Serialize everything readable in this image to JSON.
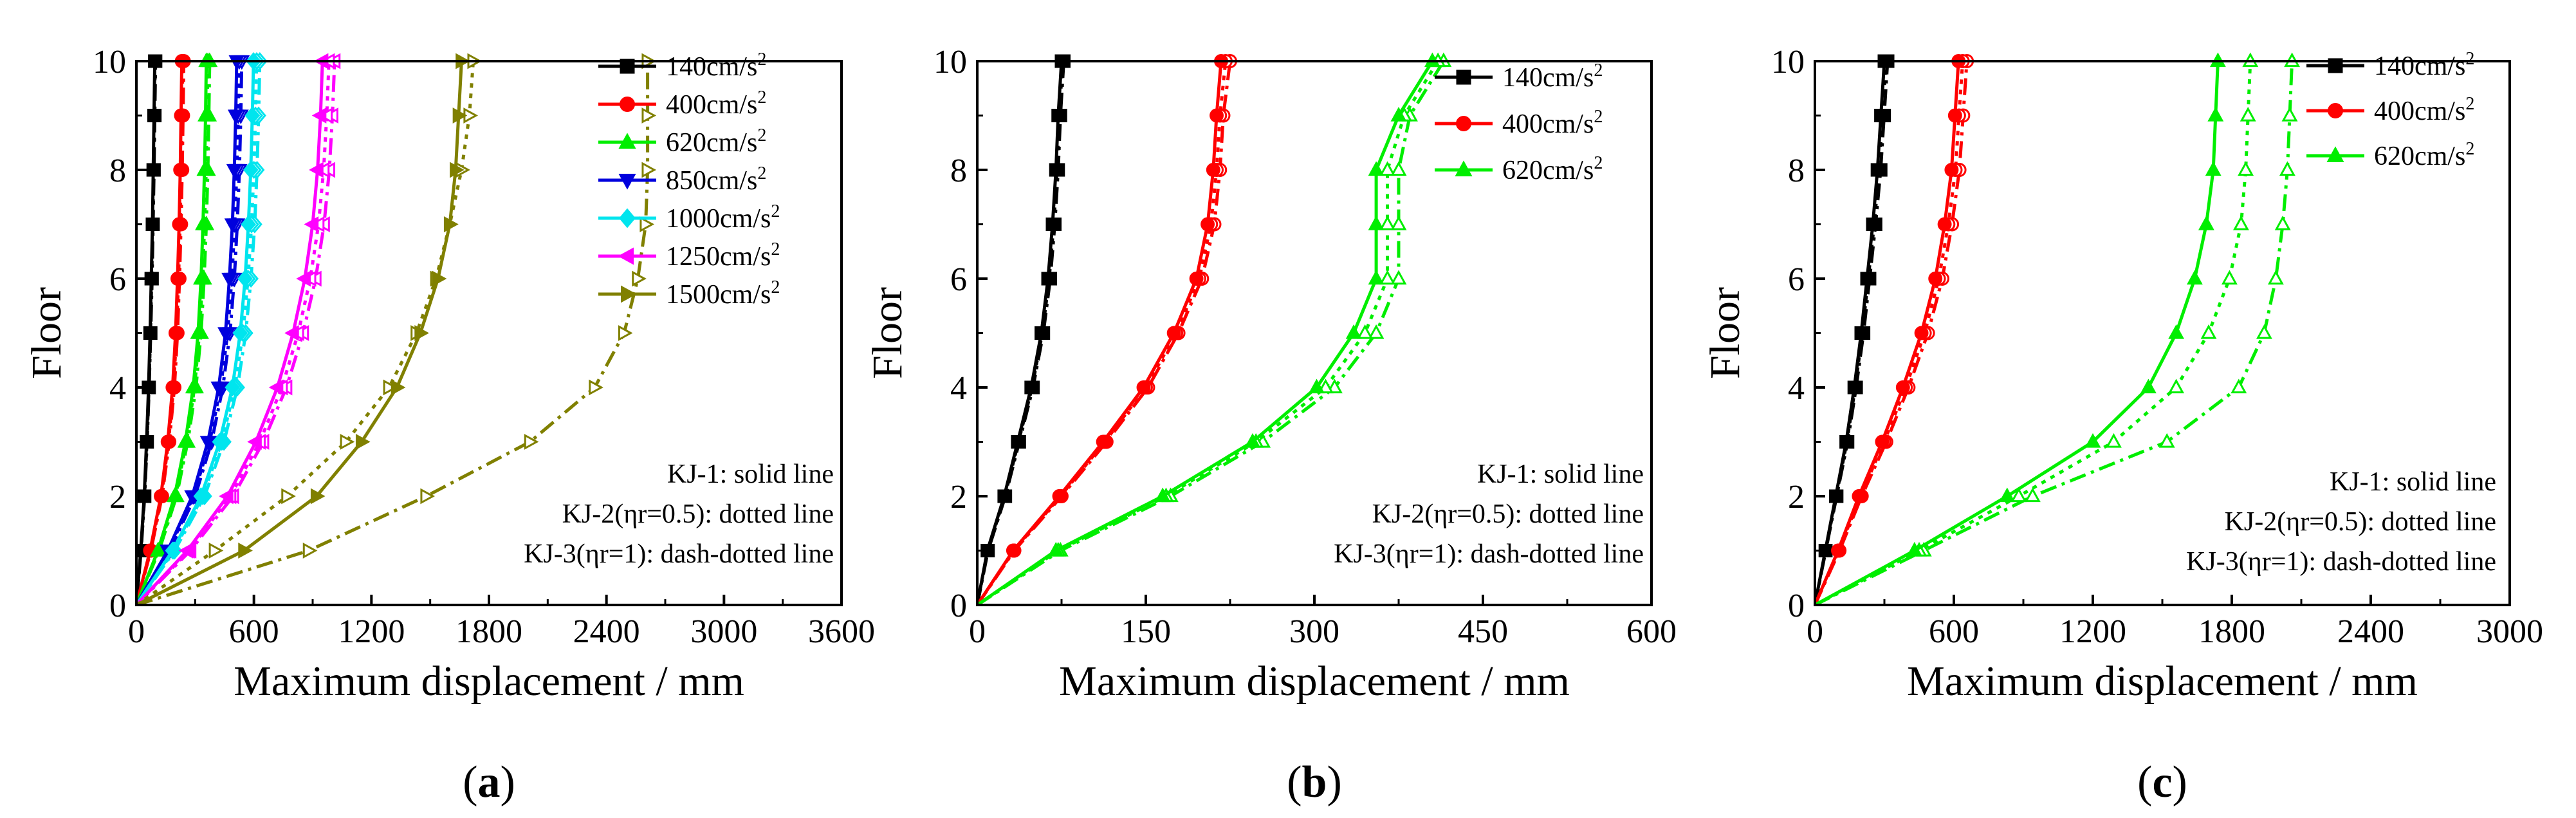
{
  "figure": {
    "panels": [
      "a",
      "b",
      "c"
    ],
    "line_style_legend": [
      "KJ-1: solid line",
      "KJ-2(ηr=0.5): dotted line",
      "KJ-3(ηr=1): dash-dotted line"
    ]
  },
  "chart_data": [
    {
      "type": "line",
      "panel_label": "a",
      "title": "",
      "xlabel": "Maximum displacement / mm",
      "ylabel": "Floor",
      "xlim": [
        0,
        3600
      ],
      "ylim": [
        0,
        10
      ],
      "xticks": [
        0,
        600,
        1200,
        1800,
        2400,
        3000,
        3600
      ],
      "yticks": [
        0,
        2,
        4,
        6,
        8,
        10
      ],
      "grid": false,
      "legend_position": "top-right",
      "legend_style_notes": [
        "KJ-1: solid line",
        "KJ-2(ηr=0.5): dotted line",
        "KJ-3(ηr=1): dash-dotted line"
      ],
      "floors": [
        0,
        1,
        2,
        3,
        4,
        5,
        6,
        7,
        8,
        9,
        10
      ],
      "series": [
        {
          "name": "140cm/s",
          "sup": "2",
          "color": "#000000",
          "marker": "square",
          "KJ-1": [
            0,
            22,
            40,
            52,
            62,
            70,
            76,
            82,
            86,
            90,
            94
          ],
          "KJ-2": [
            0,
            23,
            41,
            54,
            64,
            72,
            78,
            84,
            88,
            92,
            96
          ],
          "KJ-3": [
            0,
            24,
            42,
            55,
            65,
            73,
            80,
            85,
            90,
            94,
            98
          ]
        },
        {
          "name": "400cm/s",
          "sup": "2",
          "color": "#ff0000",
          "marker": "circle",
          "KJ-1": [
            0,
            70,
            125,
            160,
            185,
            200,
            210,
            218,
            224,
            228,
            232
          ],
          "KJ-2": [
            0,
            72,
            128,
            164,
            190,
            205,
            215,
            223,
            229,
            233,
            237
          ],
          "KJ-3": [
            0,
            74,
            131,
            168,
            194,
            210,
            220,
            228,
            234,
            238,
            242
          ]
        },
        {
          "name": "620cm/s",
          "sup": "2",
          "color": "#00ee00",
          "marker": "triangle-up",
          "KJ-1": [
            0,
            110,
            195,
            250,
            290,
            315,
            330,
            340,
            348,
            353,
            357
          ],
          "KJ-2": [
            0,
            113,
            200,
            256,
            297,
            322,
            338,
            348,
            356,
            361,
            365
          ],
          "KJ-3": [
            0,
            116,
            205,
            262,
            304,
            330,
            346,
            357,
            365,
            370,
            374
          ]
        },
        {
          "name": "850cm/s",
          "sup": "2",
          "color": "#0000dd",
          "marker": "triangle-down",
          "KJ-1": [
            0,
            160,
            285,
            365,
            420,
            455,
            475,
            490,
            500,
            507,
            512
          ],
          "KJ-2": [
            0,
            165,
            292,
            374,
            430,
            466,
            487,
            502,
            513,
            520,
            525
          ],
          "KJ-3": [
            0,
            170,
            300,
            384,
            441,
            478,
            500,
            515,
            526,
            533,
            538
          ]
        },
        {
          "name": "1000cm/s",
          "sup": "2",
          "color": "#00e5ee",
          "marker": "diamond",
          "KJ-1": [
            0,
            185,
            330,
            425,
            490,
            530,
            555,
            572,
            584,
            592,
            598
          ],
          "KJ-2": [
            0,
            190,
            339,
            436,
            503,
            544,
            570,
            588,
            600,
            608,
            614
          ],
          "KJ-3": [
            0,
            195,
            348,
            447,
            516,
            558,
            585,
            604,
            616,
            624,
            630
          ]
        },
        {
          "name": "1250cm/s",
          "sup": "2",
          "color": "#ff00ff",
          "marker": "triangle-left",
          "KJ-1": [
            0,
            260,
            465,
            610,
            720,
            800,
            860,
            900,
            925,
            940,
            950
          ],
          "KJ-2": [
            0,
            268,
            480,
            630,
            743,
            826,
            888,
            930,
            956,
            972,
            983
          ],
          "KJ-3": [
            0,
            276,
            494,
            648,
            766,
            851,
            915,
            958,
            985,
            1001,
            1012
          ]
        },
        {
          "name": "1500cm/s",
          "sup": "2",
          "color": "#808000",
          "marker": "triangle-right",
          "KJ-1": [
            0,
            550,
            920,
            1150,
            1330,
            1450,
            1540,
            1600,
            1630,
            1645,
            1660
          ],
          "KJ-2": [
            0,
            400,
            770,
            1070,
            1290,
            1430,
            1530,
            1600,
            1660,
            1700,
            1720
          ],
          "KJ-3": [
            0,
            880,
            1480,
            2010,
            2340,
            2490,
            2560,
            2600,
            2610,
            2610,
            2610
          ]
        }
      ]
    },
    {
      "type": "line",
      "panel_label": "b",
      "title": "",
      "xlabel": "Maximum displacement / mm",
      "ylabel": "Floor",
      "xlim": [
        0,
        600
      ],
      "ylim": [
        0,
        10
      ],
      "xticks": [
        0,
        150,
        300,
        450,
        600
      ],
      "yticks": [
        0,
        2,
        4,
        6,
        8,
        10
      ],
      "grid": false,
      "legend_position": "top-right",
      "legend_style_notes": [
        "KJ-1: solid line",
        "KJ-2(ηr=0.5): dotted line",
        "KJ-3(ηr=1): dash-dotted  line"
      ],
      "floors": [
        0,
        1,
        2,
        3,
        4,
        5,
        6,
        7,
        8,
        9,
        10
      ],
      "series": [
        {
          "name": "140cm/s",
          "sup": "2",
          "color": "#000000",
          "marker": "square",
          "KJ-1": [
            0,
            9,
            24,
            36,
            48,
            57,
            63,
            67,
            70,
            72,
            75
          ],
          "KJ-2": [
            0,
            9.3,
            24.5,
            36.7,
            48.8,
            57.9,
            64,
            68,
            71,
            73,
            76
          ],
          "KJ-3": [
            0,
            9.6,
            25,
            37.4,
            49.6,
            58.8,
            65,
            69,
            72,
            74,
            77
          ]
        },
        {
          "name": "400cm/s",
          "sup": "2",
          "color": "#ff0000",
          "marker": "circle",
          "KJ-1": [
            0,
            32,
            73,
            112,
            148,
            175,
            195,
            205,
            210,
            213,
            217
          ],
          "KJ-2": [
            0,
            32.5,
            74,
            113.5,
            150,
            177,
            197.5,
            208,
            213,
            216,
            221
          ],
          "KJ-3": [
            0,
            33,
            75,
            115,
            152,
            179,
            200,
            211,
            216,
            219,
            225
          ]
        },
        {
          "name": "620cm/s",
          "sup": "2",
          "color": "#00ee00",
          "marker": "triangle-up",
          "KJ-1": [
            0,
            70,
            165,
            245,
            302,
            335,
            355,
            355,
            355,
            375,
            405
          ],
          "KJ-2": [
            0,
            72,
            168,
            248,
            310,
            345,
            365,
            365,
            365,
            380,
            410
          ],
          "KJ-3": [
            0,
            74,
            172,
            254,
            318,
            355,
            375,
            375,
            375,
            385,
            415
          ]
        }
      ]
    },
    {
      "type": "line",
      "panel_label": "c",
      "title": "",
      "xlabel": "Maximum displacement / mm",
      "ylabel": "Floor",
      "xlim": [
        0,
        3000
      ],
      "ylim": [
        0,
        10
      ],
      "xticks": [
        0,
        600,
        1200,
        1800,
        2400,
        3000
      ],
      "yticks": [
        0,
        2,
        4,
        6,
        8,
        10
      ],
      "grid": false,
      "legend_position": "top-right",
      "legend_style_notes": [
        "KJ-1: solid line",
        "KJ-2(ηr=0.5): dotted line",
        "KJ-3(ηr=1): dash-dotted line"
      ],
      "floors": [
        0,
        1,
        2,
        3,
        4,
        5,
        6,
        7,
        8,
        9,
        10
      ],
      "series": [
        {
          "name": "140cm/s",
          "sup": "2",
          "color": "#000000",
          "marker": "square",
          "KJ-1": [
            0,
            45,
            90,
            135,
            170,
            200,
            225,
            250,
            270,
            285,
            300
          ],
          "KJ-2": [
            0,
            46,
            92,
            138,
            174,
            205,
            230,
            256,
            277,
            292,
            307
          ],
          "KJ-3": [
            0,
            47,
            94,
            141,
            178,
            210,
            236,
            262,
            284,
            299,
            314
          ]
        },
        {
          "name": "400cm/s",
          "sup": "2",
          "color": "#ff0000",
          "marker": "circle",
          "KJ-1": [
            0,
            100,
            190,
            290,
            380,
            460,
            520,
            560,
            590,
            605,
            620
          ],
          "KJ-2": [
            0,
            103,
            196,
            299,
            392,
            474,
            535,
            576,
            607,
            622,
            638
          ],
          "KJ-3": [
            0,
            106,
            202,
            308,
            404,
            488,
            550,
            592,
            624,
            640,
            656
          ]
        },
        {
          "name": "620cm/s",
          "sup": "2",
          "color": "#00ee00",
          "marker": "triangle-up",
          "KJ-1": [
            0,
            430,
            830,
            1200,
            1440,
            1560,
            1640,
            1690,
            1720,
            1730,
            1740
          ],
          "KJ-2": [
            0,
            450,
            880,
            1290,
            1560,
            1700,
            1790,
            1840,
            1860,
            1870,
            1880
          ],
          "KJ-3": [
            0,
            470,
            940,
            1520,
            1830,
            1940,
            1990,
            2020,
            2040,
            2050,
            2060
          ]
        }
      ]
    }
  ]
}
